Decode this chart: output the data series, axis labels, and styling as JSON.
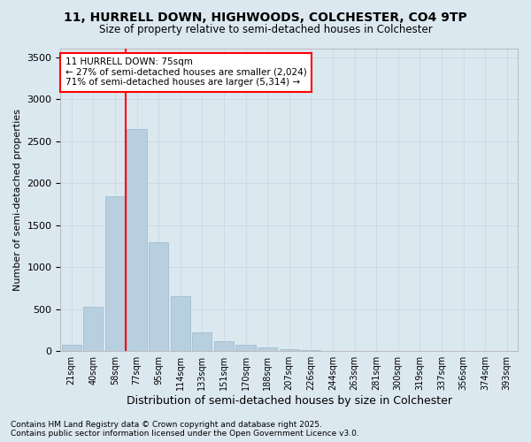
{
  "title": "11, HURRELL DOWN, HIGHWOODS, COLCHESTER, CO4 9TP",
  "subtitle": "Size of property relative to semi-detached houses in Colchester",
  "xlabel": "Distribution of semi-detached houses by size in Colchester",
  "ylabel": "Number of semi-detached properties",
  "bar_color": "#b8cfe0",
  "bar_edge_color": "#9ab8cc",
  "grid_color": "#c8d4e0",
  "background_color": "#dce8f0",
  "plot_bg_color": "#dce8f0",
  "annotation_text": "11 HURRELL DOWN: 75sqm\n← 27% of semi-detached houses are smaller (2,024)\n71% of semi-detached houses are larger (5,314) →",
  "property_line_color": "red",
  "property_line_x": 3,
  "footnote": "Contains HM Land Registry data © Crown copyright and database right 2025.\nContains public sector information licensed under the Open Government Licence v3.0.",
  "categories": [
    "21sqm",
    "40sqm",
    "58sqm",
    "77sqm",
    "95sqm",
    "114sqm",
    "133sqm",
    "151sqm",
    "170sqm",
    "188sqm",
    "207sqm",
    "226sqm",
    "244sqm",
    "263sqm",
    "281sqm",
    "300sqm",
    "319sqm",
    "337sqm",
    "356sqm",
    "374sqm",
    "393sqm"
  ],
  "values": [
    80,
    530,
    1840,
    2640,
    1300,
    650,
    220,
    120,
    75,
    45,
    20,
    10,
    5,
    3,
    2,
    1,
    0,
    0,
    0,
    0,
    0
  ],
  "ylim": [
    0,
    3600
  ],
  "yticks": [
    0,
    500,
    1000,
    1500,
    2000,
    2500,
    3000,
    3500
  ],
  "annotation_box_color": "white",
  "annotation_box_edge": "red"
}
